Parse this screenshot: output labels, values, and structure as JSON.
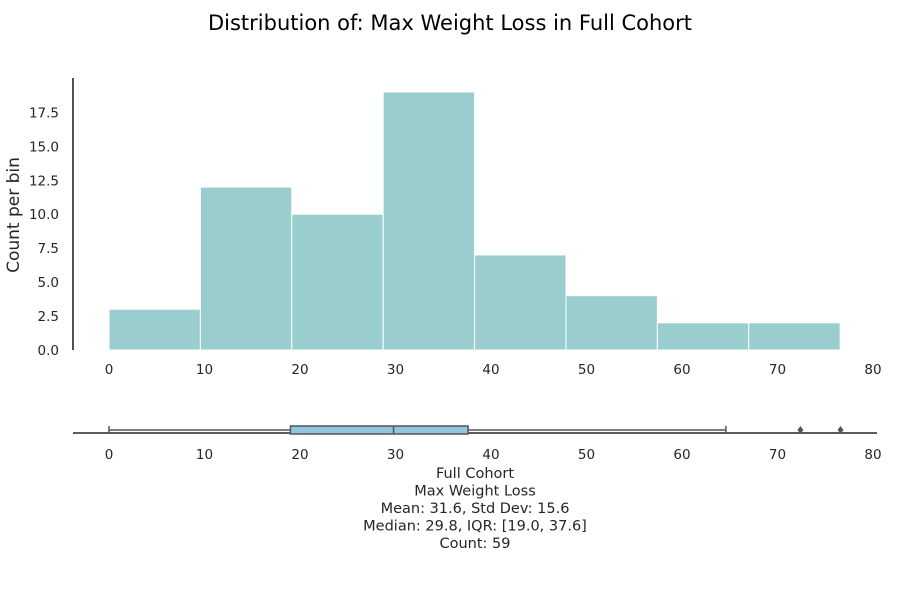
{
  "chart_data": [
    {
      "type": "bar",
      "panel": "histogram",
      "title": "Distribution of: Max Weight Loss in Full Cohort",
      "ylabel": "Count per bin",
      "xlabel": "",
      "bin_edges": [
        0,
        9.57,
        19.14,
        28.71,
        38.28,
        47.85,
        57.42,
        66.99,
        76.56
      ],
      "values": [
        3,
        12,
        10,
        19,
        7,
        4,
        2,
        2
      ],
      "xlim": [
        -3.8,
        80
      ],
      "ylim": [
        0,
        20
      ],
      "xticks": [
        0,
        10,
        20,
        30,
        40,
        50,
        60,
        70,
        80
      ],
      "yticks": [
        0,
        2.5,
        5,
        7.5,
        10,
        12.5,
        15,
        17.5
      ],
      "ytick_labels": [
        "0.0",
        "2.5",
        "5.0",
        "7.5",
        "10.0",
        "12.5",
        "15.0",
        "17.5"
      ],
      "color": "#9acdcd",
      "grid": false
    },
    {
      "type": "box",
      "panel": "boxplot",
      "min_whisker": 0,
      "q1": 19.0,
      "median": 29.8,
      "q3": 37.6,
      "max_whisker": 64.6,
      "outliers": [
        72.4,
        76.6
      ],
      "xlim": [
        -3.8,
        80
      ],
      "xticks": [
        0,
        10,
        20,
        30,
        40,
        50,
        60,
        70,
        80
      ],
      "color": "#92c5de",
      "summary_lines": [
        "Full Cohort",
        "Max Weight Loss",
        "Mean: 31.6, Std Dev: 15.6",
        "Median: 29.8, IQR: [19.0, 37.6]",
        "Count: 59"
      ]
    }
  ]
}
